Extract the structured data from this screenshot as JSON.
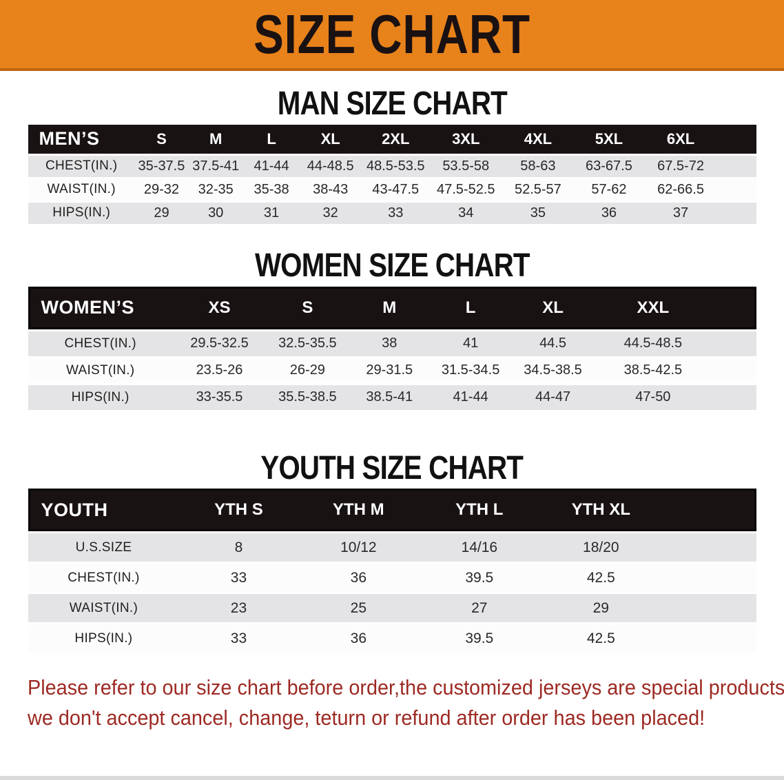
{
  "banner": {
    "title": "SIZE CHART"
  },
  "colors": {
    "banner_bg": "#E8821B",
    "banner_border": "#C0660F",
    "banner_text": "#1A1112",
    "table_header_bg": "#191213",
    "table_header_text": "#FFFFFF",
    "row_gray": "#E4E4E6",
    "row_white": "#FCFCFD",
    "cell_text": "#28282A",
    "disclaimer_text": "#9D2A23"
  },
  "men": {
    "heading": "MAN SIZE CHART",
    "table": {
      "header_label": "MEN’S",
      "sizes": [
        "S",
        "M",
        "L",
        "XL",
        "2XL",
        "3XL",
        "4XL",
        "5XL",
        "6XL"
      ],
      "rows": [
        {
          "label": "CHEST(IN.)",
          "values": [
            "35-37.5",
            "37.5-41",
            "41-44",
            "44-48.5",
            "48.5-53.5",
            "53.5-58",
            "58-63",
            "63-67.5",
            "67.5-72"
          ]
        },
        {
          "label": "WAIST(IN.)",
          "values": [
            "29-32",
            "32-35",
            "35-38",
            "38-43",
            "43-47.5",
            "47.5-52.5",
            "52.5-57",
            "57-62",
            "62-66.5"
          ]
        },
        {
          "label": "HIPS(IN.)",
          "values": [
            "29",
            "30",
            "31",
            "32",
            "33",
            "34",
            "35",
            "36",
            "37"
          ]
        }
      ]
    }
  },
  "women": {
    "heading": "WOMEN SIZE CHART",
    "table": {
      "header_label": "WOMEN’S",
      "sizes": [
        "XS",
        "S",
        "M",
        "L",
        "XL",
        "XXL"
      ],
      "rows": [
        {
          "label": "CHEST(IN.)",
          "values": [
            "29.5-32.5",
            "32.5-35.5",
            "38",
            "41",
            "44.5",
            "44.5-48.5"
          ]
        },
        {
          "label": "WAIST(IN.)",
          "values": [
            "23.5-26",
            "26-29",
            "29-31.5",
            "31.5-34.5",
            "34.5-38.5",
            "38.5-42.5"
          ]
        },
        {
          "label": "HIPS(IN.)",
          "values": [
            "33-35.5",
            "35.5-38.5",
            "38.5-41",
            "41-44",
            "44-47",
            "47-50"
          ]
        }
      ]
    }
  },
  "youth": {
    "heading": "YOUTH SIZE CHART",
    "table": {
      "header_label": "YOUTH",
      "sizes": [
        "YTH S",
        "YTH M",
        "YTH L",
        "YTH XL"
      ],
      "rows": [
        {
          "label": "U.S.SIZE",
          "values": [
            "8",
            "10/12",
            "14/16",
            "18/20"
          ]
        },
        {
          "label": "CHEST(IN.)",
          "values": [
            "33",
            "36",
            "39.5",
            "42.5"
          ]
        },
        {
          "label": "WAIST(IN.)",
          "values": [
            "23",
            "25",
            "27",
            "29"
          ]
        },
        {
          "label": "HIPS(IN.)",
          "values": [
            "33",
            "36",
            "39.5",
            "42.5"
          ]
        }
      ]
    }
  },
  "footer": {
    "line1": "Please refer to our size chart before order,the customized jerseys are special products,",
    "line2": "we don't accept cancel, change, teturn or refund after order has been placed!"
  }
}
